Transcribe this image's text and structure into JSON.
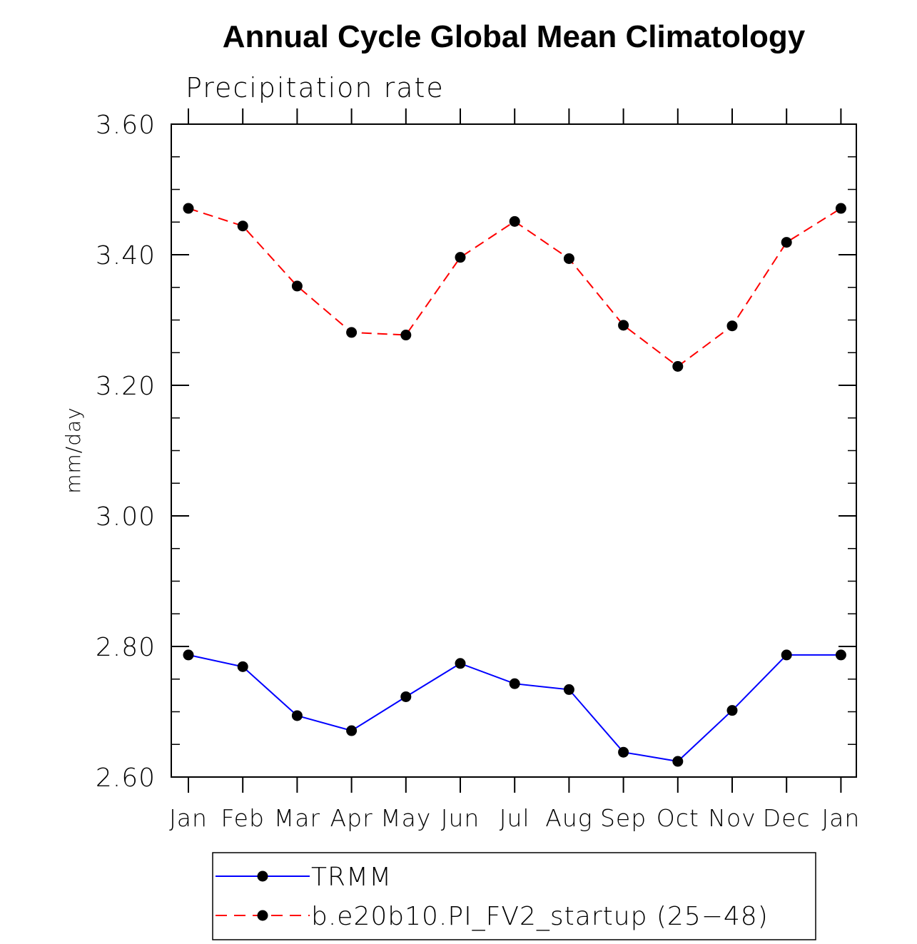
{
  "chart_data": {
    "type": "line",
    "title": "Annual Cycle Global Mean Climatology",
    "subtitle": "Precipitation rate",
    "xlabel": "",
    "ylabel": "mm/day",
    "categories": [
      "Jan",
      "Feb",
      "Mar",
      "Apr",
      "May",
      "Jun",
      "Jul",
      "Aug",
      "Sep",
      "Oct",
      "Nov",
      "Dec",
      "Jan"
    ],
    "ylim": [
      2.6,
      3.6
    ],
    "yticks": [
      "2.60",
      "2.80",
      "3.00",
      "3.20",
      "3.40",
      "3.60"
    ],
    "grid": false,
    "legend_position": "bottom",
    "series": [
      {
        "name": "TRMM",
        "color": "#0000ff",
        "dash": "solid",
        "marker": "filled-circle",
        "values": [
          2.787,
          2.769,
          2.694,
          2.671,
          2.723,
          2.774,
          2.743,
          2.734,
          2.638,
          2.624,
          2.702,
          2.787,
          2.787
        ]
      },
      {
        "name": "b.e20b10.PI_FV2_startup (25−48)",
        "color": "#ff0000",
        "dash": "dashed",
        "marker": "filled-circle",
        "values": [
          3.471,
          3.444,
          3.352,
          3.281,
          3.277,
          3.396,
          3.451,
          3.394,
          3.292,
          3.229,
          3.291,
          3.419,
          3.471
        ]
      }
    ]
  }
}
